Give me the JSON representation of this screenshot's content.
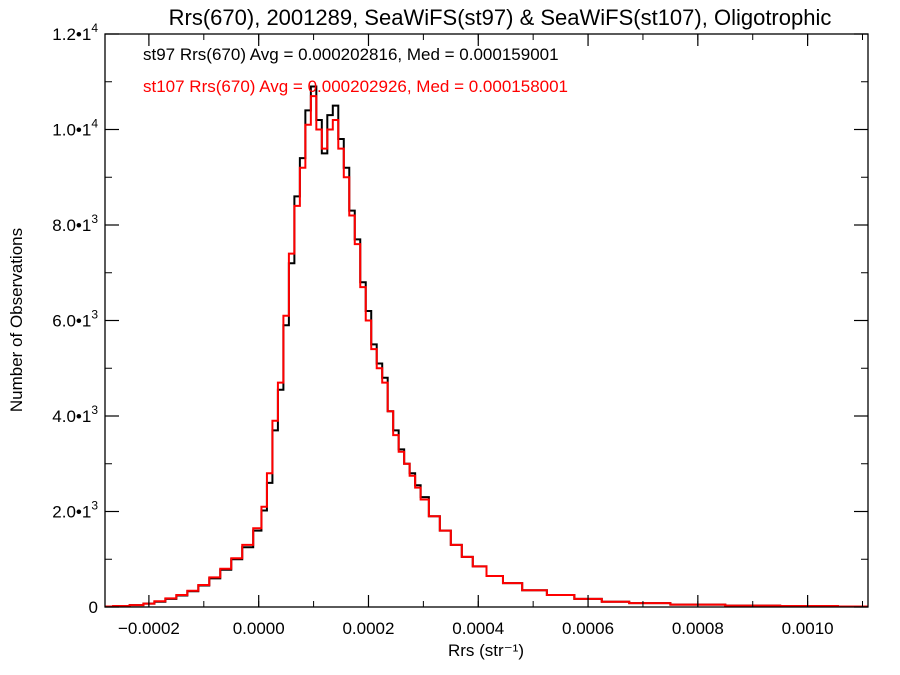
{
  "chart_data": {
    "type": "line",
    "title": "Rrs(670), 2001289, SeaWiFS(st97) & SeaWiFS(st107), Oligotrophic",
    "xlabel": "Rrs (str⁻¹)",
    "ylabel": "Number of Observations",
    "xlim": [
      -0.00028,
      0.00111
    ],
    "ylim": [
      0,
      12000
    ],
    "grid": false,
    "legend_placement": "top-left",
    "x_ticks": [
      {
        "value": -0.0002,
        "label": "−0.0002"
      },
      {
        "value": 0.0,
        "label": "0.0000"
      },
      {
        "value": 0.0002,
        "label": "0.0002"
      },
      {
        "value": 0.0004,
        "label": "0.0004"
      },
      {
        "value": 0.0006,
        "label": "0.0006"
      },
      {
        "value": 0.0008,
        "label": "0.0008"
      },
      {
        "value": 0.001,
        "label": "0.0010"
      }
    ],
    "y_ticks": [
      {
        "value": 0,
        "mant": "0",
        "exp": ""
      },
      {
        "value": 2000,
        "mant": "2.0•1",
        "exp": "3"
      },
      {
        "value": 4000,
        "mant": "4.0•1",
        "exp": "3"
      },
      {
        "value": 6000,
        "mant": "6.0•1",
        "exp": "3"
      },
      {
        "value": 8000,
        "mant": "8.0•1",
        "exp": "3"
      },
      {
        "value": 10000,
        "mant": "1.0•1",
        "exp": "4"
      },
      {
        "value": 12000,
        "mant": "1.2•1",
        "exp": "4"
      }
    ],
    "series": [
      {
        "name": "st97",
        "legend_label": "st97 Rrs(670) Avg = 0.000202816, Med = 0.000159001",
        "color": "#000000",
        "x": [
          -0.00028,
          -0.00025,
          -0.00022,
          -0.0002,
          -0.00018,
          -0.00016,
          -0.00014,
          -0.00012,
          -0.0001,
          -8e-05,
          -6e-05,
          -4e-05,
          -2e-05,
          0.0,
          1e-05,
          2e-05,
          3e-05,
          4e-05,
          5e-05,
          6e-05,
          7e-05,
          8e-05,
          9e-05,
          0.0001,
          0.00011,
          0.00012,
          0.00013,
          0.00014,
          0.00015,
          0.00016,
          0.00017,
          0.00018,
          0.00019,
          0.0002,
          0.00021,
          0.00022,
          0.00023,
          0.00024,
          0.00025,
          0.00026,
          0.00027,
          0.00028,
          0.00029,
          0.0003,
          0.00032,
          0.00034,
          0.00036,
          0.00038,
          0.0004,
          0.00043,
          0.00046,
          0.0005,
          0.00055,
          0.0006,
          0.00065,
          0.0007,
          0.0008,
          0.0009,
          0.001,
          0.00111
        ],
        "y": [
          10,
          20,
          40,
          70,
          110,
          170,
          240,
          330,
          450,
          600,
          780,
          1000,
          1250,
          1600,
          2020,
          2600,
          3700,
          4550,
          5900,
          7200,
          8600,
          9400,
          10400,
          10900,
          10200,
          9500,
          10300,
          10500,
          9800,
          9200,
          8300,
          7700,
          6800,
          6200,
          5500,
          5100,
          4800,
          4100,
          3700,
          3300,
          3000,
          2800,
          2550,
          2300,
          1900,
          1600,
          1300,
          1050,
          850,
          650,
          500,
          350,
          250,
          170,
          110,
          80,
          50,
          30,
          20,
          10
        ]
      },
      {
        "name": "st107",
        "legend_label": "st107 Rrs(670) Avg = 0.000202926, Med = 0.000158001",
        "color": "#ff0000",
        "x": [
          -0.00028,
          -0.00025,
          -0.00022,
          -0.0002,
          -0.00018,
          -0.00016,
          -0.00014,
          -0.00012,
          -0.0001,
          -8e-05,
          -6e-05,
          -4e-05,
          -2e-05,
          0.0,
          1e-05,
          2e-05,
          3e-05,
          4e-05,
          5e-05,
          6e-05,
          7e-05,
          8e-05,
          9e-05,
          0.0001,
          0.00011,
          0.00012,
          0.00013,
          0.00014,
          0.00015,
          0.00016,
          0.00017,
          0.00018,
          0.00019,
          0.0002,
          0.00021,
          0.00022,
          0.00023,
          0.00024,
          0.00025,
          0.00026,
          0.00027,
          0.00028,
          0.00029,
          0.0003,
          0.00032,
          0.00034,
          0.00036,
          0.00038,
          0.0004,
          0.00043,
          0.00046,
          0.0005,
          0.00055,
          0.0006,
          0.00065,
          0.0007,
          0.0008,
          0.0009,
          0.001,
          0.00111
        ],
        "y": [
          10,
          20,
          40,
          70,
          120,
          180,
          250,
          340,
          460,
          620,
          800,
          1020,
          1300,
          1650,
          2100,
          2800,
          3900,
          4700,
          6100,
          7400,
          8400,
          9200,
          10100,
          10700,
          10000,
          9600,
          10000,
          10200,
          9600,
          9000,
          8200,
          7600,
          6700,
          6000,
          5400,
          5000,
          4700,
          4100,
          3600,
          3250,
          3000,
          2750,
          2500,
          2250,
          1900,
          1600,
          1300,
          1050,
          850,
          650,
          500,
          350,
          250,
          170,
          110,
          80,
          50,
          30,
          20,
          10
        ]
      }
    ]
  }
}
